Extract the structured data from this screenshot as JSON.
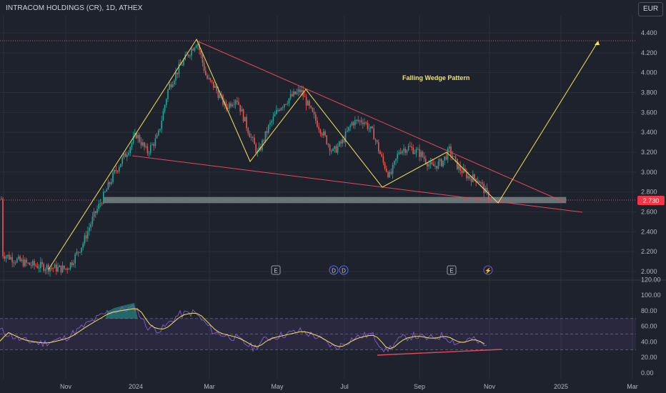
{
  "header": {
    "title": "INTRACOM HOLDINGS (CR), 1D, ATHEX",
    "currency": "EUR"
  },
  "price_pane": {
    "y_ticks": [
      "4.400",
      "4.200",
      "4.000",
      "3.800",
      "3.600",
      "3.400",
      "3.200",
      "3.000",
      "2.800",
      "2.600",
      "2.400",
      "2.200",
      "2.000"
    ],
    "last_price": "2.730",
    "annotation": "Falling Wedge Pattern",
    "event_markers": [
      "E",
      "D",
      "D",
      "E",
      "⚡"
    ]
  },
  "rsi_pane": {
    "y_ticks": [
      "120.00",
      "100.00",
      "80.00",
      "60.00",
      "40.00",
      "20.00",
      "0.00"
    ]
  },
  "time_axis": {
    "labels": [
      "Nov",
      "2024",
      "Mar",
      "May",
      "Jul",
      "Sep",
      "Nov",
      "2025",
      "Mar"
    ]
  },
  "colors": {
    "background": "#1e222d",
    "up_candle": "#26a69a",
    "down_candle": "#ef5350",
    "wedge_lines": "#e5475f",
    "pattern_lines": "#f5e45a",
    "support_zone": "#7e8d8c",
    "rsi_line": "#7e57c2",
    "rsi_ma": "#f5e45a",
    "last_price_badge": "#f23645"
  },
  "chart_data": {
    "type": "candlestick",
    "price_axis_range": [
      1.95,
      4.45
    ],
    "rsi_axis_range": [
      0,
      120
    ],
    "approx_close_path": [
      {
        "x": "Oct 2023",
        "y": 2.18
      },
      {
        "x": "Late Nov 2023",
        "y": 2.02
      },
      {
        "x": "Dec 2023",
        "y": 2.75
      },
      {
        "x": "Jan 2024",
        "y": 3.3
      },
      {
        "x": "Feb 2024",
        "y": 4.32
      },
      {
        "x": "Mar 2024",
        "y": 3.75
      },
      {
        "x": "Apr 2024",
        "y": 3.18
      },
      {
        "x": "May 2024",
        "y": 3.82
      },
      {
        "x": "Jun 2024",
        "y": 3.2
      },
      {
        "x": "Jul 2024",
        "y": 3.5
      },
      {
        "x": "Aug 2024",
        "y": 2.87
      },
      {
        "x": "Sep 2024",
        "y": 3.25
      },
      {
        "x": "Oct 2024",
        "y": 2.73
      }
    ],
    "last_price": 2.73
  }
}
